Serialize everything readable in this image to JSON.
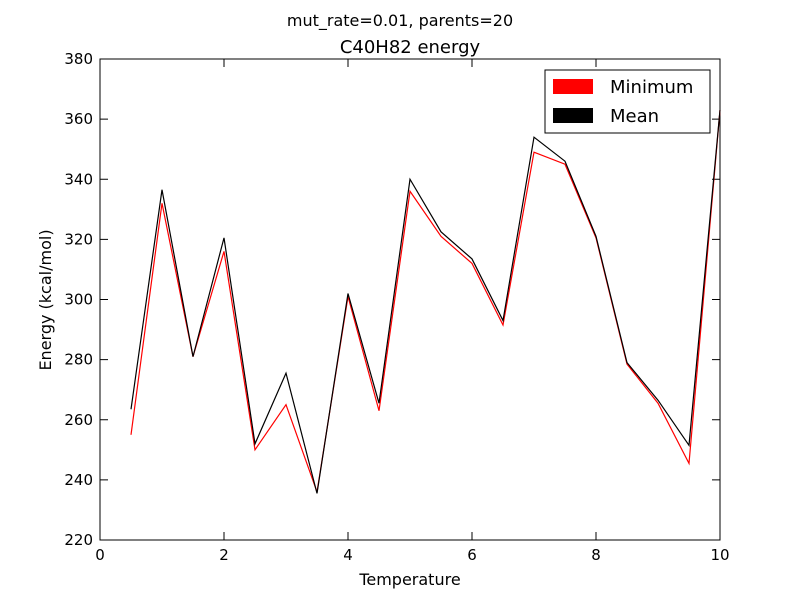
{
  "chart_data": {
    "type": "line",
    "suptitle": "mut_rate=0.01, parents=20",
    "title": "C40H82 energy",
    "xlabel": "Temperature",
    "ylabel": "Energy (kcal/mol)",
    "xlim": [
      0,
      10
    ],
    "ylim": [
      220,
      380
    ],
    "xticks": [
      0,
      2,
      4,
      6,
      8,
      10
    ],
    "yticks": [
      220,
      240,
      260,
      280,
      300,
      320,
      340,
      360,
      380
    ],
    "grid": false,
    "legend": "top-right",
    "x": [
      0.5,
      1.0,
      1.5,
      2.0,
      2.5,
      3.0,
      3.5,
      4.0,
      4.5,
      5.0,
      5.5,
      6.0,
      6.5,
      7.0,
      7.5,
      8.0,
      8.5,
      9.0,
      9.5,
      10.0
    ],
    "series": [
      {
        "name": "Minimum",
        "color": "#ff0000",
        "values": [
          255,
          332,
          281,
          316,
          250,
          265,
          236,
          301,
          263,
          336,
          321,
          312,
          291.5,
          349,
          345,
          320.5,
          278.5,
          265.5,
          245.5,
          363
        ]
      },
      {
        "name": "Mean",
        "color": "#000000",
        "values": [
          263.5,
          336.5,
          281,
          320.5,
          252,
          275.5,
          235.5,
          302,
          265.5,
          340,
          322.5,
          313.5,
          293,
          354,
          346,
          321,
          279,
          266.5,
          251.5,
          363
        ]
      }
    ]
  }
}
